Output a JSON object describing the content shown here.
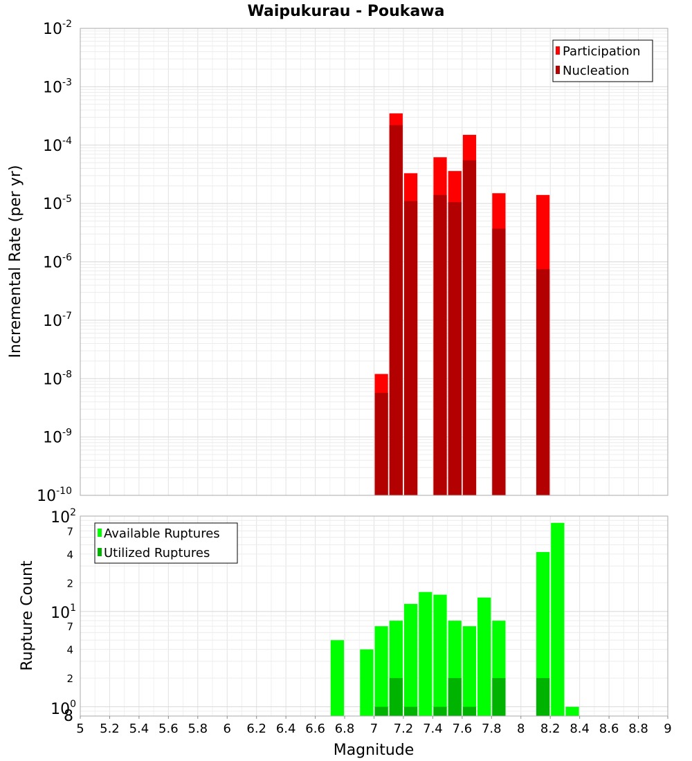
{
  "title": "Waipukurau - Poukawa",
  "xlabel": "Magnitude",
  "x_ticks": [
    "5",
    "5.2",
    "5.4",
    "5.6",
    "5.8",
    "6",
    "6.2",
    "6.4",
    "6.6",
    "6.8",
    "7",
    "7.2",
    "7.4",
    "7.6",
    "7.8",
    "8",
    "8.2",
    "8.4",
    "8.6",
    "8.8",
    "9"
  ],
  "chart_data": [
    {
      "type": "bar",
      "title": "Waipukurau - Poukawa",
      "xlabel": "Magnitude",
      "ylabel": "Incremental Rate (per yr)",
      "y_scale": "log",
      "xlim": [
        5,
        9
      ],
      "ylim": [
        1e-10,
        0.01
      ],
      "y_tick_labels": [
        {
          "base": "10",
          "exp": "-2"
        },
        {
          "base": "10",
          "exp": "-3"
        },
        {
          "base": "10",
          "exp": "-4"
        },
        {
          "base": "10",
          "exp": "-5"
        },
        {
          "base": "10",
          "exp": "-6"
        },
        {
          "base": "10",
          "exp": "-7"
        },
        {
          "base": "10",
          "exp": "-8"
        },
        {
          "base": "10",
          "exp": "-9"
        },
        {
          "base": "10",
          "exp": "-10"
        }
      ],
      "grid": true,
      "legend_position": "top-right",
      "x": [
        7.05,
        7.15,
        7.25,
        7.45,
        7.55,
        7.65,
        7.85,
        8.15
      ],
      "series": [
        {
          "name": "Participation",
          "color": "#ff0000",
          "values": [
            1.2e-08,
            0.00035,
            3.3e-05,
            6.2e-05,
            3.6e-05,
            0.00015,
            1.5e-05,
            1.4e-05
          ]
        },
        {
          "name": "Nucleation",
          "color": "#b30000",
          "values": [
            5.7e-09,
            0.00022,
            1.1e-05,
            1.4e-05,
            1.05e-05,
            5.5e-05,
            3.7e-06,
            7.5e-07
          ]
        }
      ]
    },
    {
      "type": "bar",
      "xlabel": "Magnitude",
      "ylabel": "Rupture Count",
      "y_scale": "log",
      "xlim": [
        5,
        9
      ],
      "ylim": [
        0.8,
        100
      ],
      "y_tick_labels": [
        {
          "base": "10",
          "exp": "2"
        },
        {
          "base": "",
          "exp": "",
          "minor": "7"
        },
        {
          "base": "",
          "exp": "",
          "minor": "4"
        },
        {
          "base": "",
          "exp": "",
          "minor": "2"
        },
        {
          "base": "10",
          "exp": "1"
        },
        {
          "base": "",
          "exp": "",
          "minor": "7"
        },
        {
          "base": "",
          "exp": "",
          "minor": "4"
        },
        {
          "base": "",
          "exp": "",
          "minor": "2"
        },
        {
          "base": "10",
          "exp": "0"
        },
        {
          "base": "",
          "exp": "",
          "minor": "8"
        }
      ],
      "grid": true,
      "legend_position": "top-left",
      "x": [
        6.75,
        6.95,
        7.05,
        7.15,
        7.25,
        7.35,
        7.45,
        7.55,
        7.65,
        7.75,
        7.85,
        8.15,
        8.25,
        8.35
      ],
      "series": [
        {
          "name": "Available Ruptures",
          "color": "#00ff00",
          "values": [
            5,
            4,
            7,
            8,
            12,
            16,
            15,
            8,
            7,
            14,
            8,
            42,
            85,
            1
          ]
        },
        {
          "name": "Utilized Ruptures",
          "color": "#00b300",
          "values": [
            0,
            0,
            1,
            2,
            1,
            0,
            1,
            2,
            1,
            0,
            2,
            2,
            0,
            0
          ]
        }
      ]
    }
  ]
}
